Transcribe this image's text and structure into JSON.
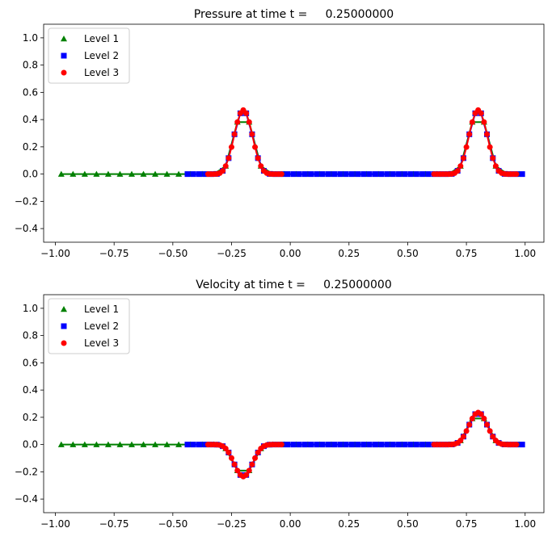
{
  "chart_data": [
    {
      "type": "line",
      "title": "Pressure at time t =     0.25000000",
      "xlabel": "",
      "ylabel": "",
      "xlim": [
        -1.05,
        1.08
      ],
      "ylim": [
        -0.5,
        1.1
      ],
      "xticks": [
        -1.0,
        -0.75,
        -0.5,
        -0.25,
        0.0,
        0.25,
        0.5,
        0.75,
        1.0
      ],
      "xtick_labels": [
        "−1.00",
        "−0.75",
        "−0.50",
        "−0.25",
        "0.00",
        "0.25",
        "0.50",
        "0.75",
        "1.00"
      ],
      "yticks": [
        -0.4,
        -0.2,
        0.0,
        0.2,
        0.4,
        0.6,
        0.8,
        1.0
      ],
      "ytick_labels": [
        "−0.4",
        "−0.2",
        "0.0",
        "0.2",
        "0.4",
        "0.6",
        "0.8",
        "1.0"
      ],
      "legend_position": "top-left",
      "grid": false,
      "pulses": [
        {
          "center": -0.2,
          "amplitude": 0.47
        },
        {
          "center": 0.8,
          "amplitude": 0.47
        }
      ],
      "series": [
        {
          "name": "Level 1",
          "marker": "triangle",
          "color": "#008000",
          "x_range": [
            -0.975,
            0.975
          ],
          "spacing": 0.05
        },
        {
          "name": "Level 2",
          "marker": "square",
          "color": "#0000ff",
          "x_range": [
            -0.4375,
            0.9875
          ],
          "spacing": 0.025
        },
        {
          "name": "Level 3",
          "marker": "circle",
          "color": "#ff0000",
          "ranges": [
            [
              -0.35,
              -0.0375
            ],
            [
              0.6125,
              0.9625
            ]
          ],
          "spacing": 0.0125
        }
      ]
    },
    {
      "type": "line",
      "title": "Velocity at time t =     0.25000000",
      "xlabel": "",
      "ylabel": "",
      "xlim": [
        -1.05,
        1.08
      ],
      "ylim": [
        -0.5,
        1.1
      ],
      "xticks": [
        -1.0,
        -0.75,
        -0.5,
        -0.25,
        0.0,
        0.25,
        0.5,
        0.75,
        1.0
      ],
      "xtick_labels": [
        "−1.00",
        "−0.75",
        "−0.50",
        "−0.25",
        "0.00",
        "0.25",
        "0.50",
        "0.75",
        "1.00"
      ],
      "yticks": [
        -0.4,
        -0.2,
        0.0,
        0.2,
        0.4,
        0.6,
        0.8,
        1.0
      ],
      "ytick_labels": [
        "−0.4",
        "−0.2",
        "0.0",
        "0.2",
        "0.4",
        "0.6",
        "0.8",
        "1.0"
      ],
      "legend_position": "top-left",
      "grid": false,
      "pulses": [
        {
          "center": -0.2,
          "amplitude": -0.235
        },
        {
          "center": 0.8,
          "amplitude": 0.235
        }
      ],
      "series": [
        {
          "name": "Level 1",
          "marker": "triangle",
          "color": "#008000",
          "x_range": [
            -0.975,
            0.975
          ],
          "spacing": 0.05
        },
        {
          "name": "Level 2",
          "marker": "square",
          "color": "#0000ff",
          "x_range": [
            -0.4375,
            0.9875
          ],
          "spacing": 0.025
        },
        {
          "name": "Level 3",
          "marker": "circle",
          "color": "#ff0000",
          "ranges": [
            [
              -0.35,
              -0.0375
            ],
            [
              0.6125,
              0.9625
            ]
          ],
          "spacing": 0.0125
        }
      ]
    }
  ]
}
